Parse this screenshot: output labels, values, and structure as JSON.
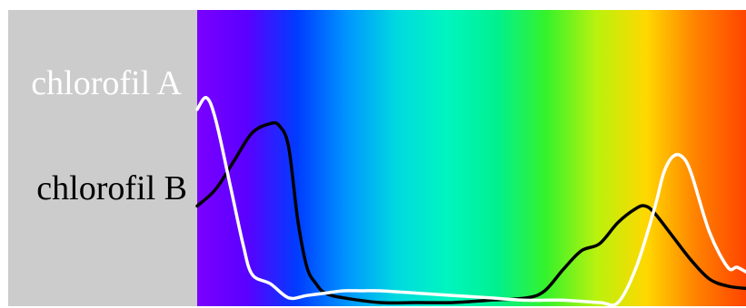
{
  "chart_data": {
    "type": "line",
    "title": "",
    "xlabel": "",
    "ylabel": "",
    "xlim": [
      400,
      700
    ],
    "ylim": [
      0,
      1
    ],
    "grid": false,
    "legend": "left",
    "series": [
      {
        "name": "chlorofil A",
        "color": "#ffffff",
        "x": [
          400,
          405,
          410,
          418,
          425,
          430,
          440,
          450,
          460,
          470,
          480,
          490,
          500,
          520,
          540,
          560,
          580,
          600,
          620,
          630,
          640,
          650,
          655,
          660,
          665,
          670,
          680,
          690,
          695,
          700
        ],
        "y": [
          0.82,
          0.87,
          0.78,
          0.5,
          0.25,
          0.12,
          0.08,
          0.02,
          0.03,
          0.04,
          0.05,
          0.05,
          0.05,
          0.04,
          0.03,
          0.02,
          0.01,
          0.01,
          0.0,
          0.0,
          0.15,
          0.4,
          0.55,
          0.62,
          0.62,
          0.55,
          0.3,
          0.15,
          0.15,
          0.13
        ]
      },
      {
        "name": "chlorofil B",
        "color": "#000000",
        "x": [
          400,
          410,
          420,
          430,
          440,
          445,
          450,
          455,
          460,
          465,
          470,
          480,
          500,
          520,
          540,
          560,
          580,
          590,
          600,
          610,
          620,
          630,
          640,
          645,
          650,
          660,
          670,
          680,
          690,
          700
        ],
        "y": [
          0.41,
          0.48,
          0.6,
          0.72,
          0.76,
          0.75,
          0.66,
          0.35,
          0.15,
          0.08,
          0.04,
          0.02,
          0.0,
          0.0,
          0.0,
          0.01,
          0.02,
          0.05,
          0.14,
          0.22,
          0.25,
          0.34,
          0.4,
          0.41,
          0.38,
          0.28,
          0.18,
          0.1,
          0.07,
          0.06
        ]
      }
    ]
  },
  "legend": {
    "a_label": "chlorofil A",
    "b_label": "chlorofil B"
  },
  "colors": {
    "panel": "#cccccc",
    "line_a": "#ffffff",
    "line_b": "#000000",
    "spectrum": [
      "#7b00ff",
      "#5a00ff",
      "#003cff",
      "#0095ff",
      "#00d9e0",
      "#00f5c0",
      "#00f090",
      "#36f22a",
      "#b9f20e",
      "#ffd800",
      "#ff8200",
      "#ff4400"
    ]
  }
}
